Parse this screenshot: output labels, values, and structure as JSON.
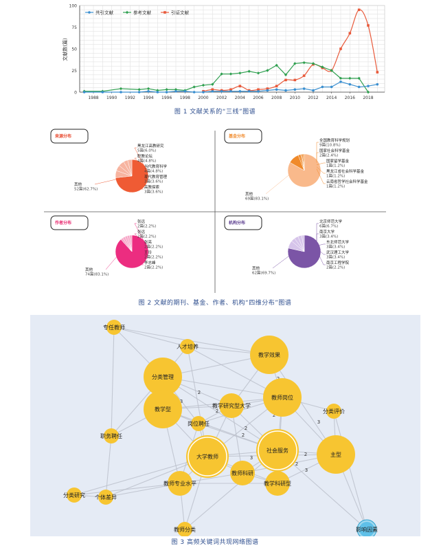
{
  "figure1": {
    "caption": "图 1 文献关系的“三线”图谱",
    "chart_data": {
      "type": "line",
      "ylabel": "文献数(篇)",
      "xlabel": "",
      "ylim": [
        0,
        100
      ],
      "yticks": [
        0,
        25,
        50,
        75,
        100
      ],
      "xticks": [
        1988,
        1990,
        1992,
        1994,
        1996,
        1998,
        2000,
        2002,
        2004,
        2006,
        2008,
        2010,
        2012,
        2014,
        2016,
        2018
      ],
      "grid": true,
      "legend": "top-left",
      "series": [
        {
          "name": "引证文献",
          "color": "#e8593a",
          "x": [
            2000,
            2001,
            2002,
            2003,
            2004,
            2005,
            2006,
            2007,
            2008,
            2009,
            2010,
            2011,
            2012,
            2013,
            2014,
            2015,
            2016,
            2017,
            2018,
            2019
          ],
          "y": [
            1,
            3,
            2,
            3,
            7,
            2,
            3,
            4,
            7,
            14,
            14,
            19,
            32,
            28,
            25,
            50,
            68,
            95,
            77,
            23
          ]
        },
        {
          "name": "参考文献",
          "color": "#2e9f4f",
          "x": [
            1987,
            1989,
            1991,
            1993,
            1994,
            1995,
            1996,
            1997,
            1998,
            1999,
            2000,
            2001,
            2002,
            2003,
            2004,
            2005,
            2006,
            2007,
            2008,
            2009,
            2010,
            2011,
            2012,
            2013,
            2014,
            2015,
            2016,
            2017,
            2018
          ],
          "y": [
            1,
            1,
            4,
            3,
            4,
            2,
            3,
            3,
            2,
            6,
            8,
            9,
            21,
            21,
            22,
            24,
            22,
            25,
            31,
            20,
            33,
            34,
            33,
            29,
            25,
            16,
            16,
            16,
            0
          ]
        },
        {
          "name": "共引文献",
          "color": "#3a8fd0",
          "x": [
            1987,
            1989,
            1991,
            1993,
            1994,
            1995,
            1996,
            1997,
            1998,
            1999,
            2000,
            2001,
            2002,
            2003,
            2004,
            2005,
            2006,
            2007,
            2008,
            2009,
            2010,
            2011,
            2012,
            2013,
            2014,
            2015,
            2016,
            2017,
            2018,
            2019
          ],
          "y": [
            0,
            0,
            0,
            0,
            1,
            0,
            0,
            1,
            1,
            0,
            0,
            1,
            1,
            1,
            1,
            1,
            1,
            2,
            3,
            2,
            3,
            4,
            2,
            6,
            6,
            12,
            9,
            6,
            7,
            9
          ]
        }
      ]
    }
  },
  "figure2": {
    "caption": "图 2 文献的期刊、基金、作者、机构“四维分布”图谱",
    "chart_data": [
      {
        "type": "pie",
        "title": "来源分布",
        "title_color": "#e84a2f",
        "slices": [
          {
            "label": "其他",
            "count": "52篇",
            "percent": 62.7
          },
          {
            "label": "黑龙江高教研究",
            "count": "5篇",
            "percent": 6.0
          },
          {
            "label": "职教论坛",
            "count": "4篇",
            "percent": 4.8
          },
          {
            "label": "当代教育科学",
            "count": "4篇",
            "percent": 4.8
          },
          {
            "label": "现代教育管理",
            "count": "3篇",
            "percent": 3.6
          },
          {
            "label": "高教探索",
            "count": "3篇",
            "percent": 3.6
          }
        ],
        "label_lines": [
          {
            "name": "黑龙江高教研究",
            "value": "5篇(6.0%)"
          },
          {
            "name": "职教论坛",
            "value": "4篇(4.8%)"
          },
          {
            "name": "当代教育科学",
            "value": "4篇(4.8%)"
          },
          {
            "name": "现代教育管理",
            "value": "3篇(3.6%)"
          },
          {
            "name": "高教探索",
            "value": "3篇(3.6%)"
          },
          {
            "name": "其他",
            "value": "52篇(62.7%)"
          }
        ],
        "color_main": "#ef5b34",
        "color_slice": "#f7b4a0"
      },
      {
        "type": "pie",
        "title": "基金分布",
        "title_color": "#f08a2b",
        "slices": [
          {
            "label": "其他",
            "count": "69篇",
            "percent": 83.1
          },
          {
            "label": "全国教育科学规划",
            "count": "9篇",
            "percent": 10.8
          },
          {
            "label": "国家社会科学基金",
            "count": "2篇",
            "percent": 2.4
          },
          {
            "label": "国家留学基金",
            "count": "1篇",
            "percent": 1.2
          },
          {
            "label": "黑龙江省社会科学基金",
            "count": "1篇",
            "percent": 1.2
          },
          {
            "label": "云南省哲学社会科学基金",
            "count": "1篇",
            "percent": 1.2
          }
        ],
        "label_lines": [
          {
            "name": "全国教育科学规划",
            "value": "9篇(10.8%)"
          },
          {
            "name": "国家社会科学基金",
            "value": "2篇(2.4%)"
          },
          {
            "name": "国家留学基金",
            "value": "1篇(1.2%)"
          },
          {
            "name": "黑龙江省社会科学基金",
            "value": "1篇(1.2%)"
          },
          {
            "name": "云南省哲学社会科学基金",
            "value": "1篇(1.2%)"
          },
          {
            "name": "其他",
            "value": "69篇(83.1%)"
          }
        ],
        "color_main": "#f9b98b",
        "color_slice": "#f08a2b"
      },
      {
        "type": "pie",
        "title": "作者分布",
        "title_color": "#e8286e",
        "slices": [
          {
            "label": "其他",
            "count": "74篇",
            "percent": 83.1
          },
          {
            "label": "张远",
            "count": "2篇",
            "percent": 2.2
          },
          {
            "label": "张远",
            "count": "2篇",
            "percent": 2.2
          },
          {
            "label": "张亮",
            "count": "2篇",
            "percent": 2.2
          },
          {
            "label": "王玲",
            "count": "2篇",
            "percent": 2.2
          },
          {
            "label": "李志峰",
            "count": "2篇",
            "percent": 2.2
          }
        ],
        "label_lines": [
          {
            "name": "张远",
            "value": "2篇(2.2%)"
          },
          {
            "name": "张远",
            "value": "2篇(2.2%)"
          },
          {
            "name": "张亮",
            "value": "2篇(2.2%)"
          },
          {
            "name": "王玲",
            "value": "2篇(2.2%)"
          },
          {
            "name": "李志峰",
            "value": "2篇(2.2%)"
          },
          {
            "name": "其他",
            "value": "74篇(83.1%)"
          }
        ],
        "color_main": "#ec2d80",
        "color_slice": "#f7a8c8"
      },
      {
        "type": "pie",
        "title": "机构分布",
        "title_color": "#5a3c8e",
        "slices": [
          {
            "label": "其他",
            "count": "62篇",
            "percent": 69.7
          },
          {
            "label": "北京师范大学",
            "count": "6篇",
            "percent": 6.7
          },
          {
            "label": "南京大学",
            "count": "3篇",
            "percent": 3.4
          },
          {
            "label": "东北师范大学",
            "count": "3篇",
            "percent": 3.4
          },
          {
            "label": "武汉理工大学",
            "count": "3篇",
            "percent": 3.4
          },
          {
            "label": "南京工程学院",
            "count": "2篇",
            "percent": 2.2
          }
        ],
        "label_lines": [
          {
            "name": "北京师范大学",
            "value": "6篇(6.7%)"
          },
          {
            "name": "南京大学",
            "value": "3篇(3.4%)"
          },
          {
            "name": "东北师范大学",
            "value": "3篇(3.4%)"
          },
          {
            "name": "武汉理工大学",
            "value": "3篇(3.4%)"
          },
          {
            "name": "南京工程学院",
            "value": "2篇(2.2%)"
          },
          {
            "name": "其他",
            "value": "62篇(69.7%)"
          }
        ],
        "color_main": "#7b55a6",
        "color_slice": "#d6c4ea"
      }
    ]
  },
  "figure3": {
    "caption": "图 3 高频关键词共现网络图谱",
    "nodes": [
      {
        "id": "zhuanren",
        "label": "专任教师",
        "size": "small"
      },
      {
        "id": "rencai",
        "label": "人才培养",
        "size": "small"
      },
      {
        "id": "jiaoxuexiaoguo",
        "label": "教学效果",
        "size": "large"
      },
      {
        "id": "fenleiguanli",
        "label": "分类管理",
        "size": "large"
      },
      {
        "id": "jiaoshigangwei",
        "label": "教师岗位",
        "size": "large"
      },
      {
        "id": "jiaoxueyanjiu",
        "label": "教学研究型大学",
        "size": "medium"
      },
      {
        "id": "jiaoxuexing",
        "label": "教学型",
        "size": "large"
      },
      {
        "id": "fenleipingjia",
        "label": "分类评价",
        "size": "small"
      },
      {
        "id": "gangwei",
        "label": "岗位聘任",
        "size": "small"
      },
      {
        "id": "zhiwu",
        "label": "职务聘任",
        "size": "small"
      },
      {
        "id": "daxuejiaoshi",
        "label": "大学教师",
        "size": "large"
      },
      {
        "id": "shehuifuwu",
        "label": "社会服务",
        "size": "large"
      },
      {
        "id": "zhuxing",
        "label": "主型",
        "size": "large"
      },
      {
        "id": "jiaoshikeyan",
        "label": "教师科研",
        "size": "medium"
      },
      {
        "id": "zhuanyeshuiping",
        "label": "教师专业水平",
        "size": "medium"
      },
      {
        "id": "jiaoxuekeyan",
        "label": "教学科研型",
        "size": "medium"
      },
      {
        "id": "fenleiyanjiu",
        "label": "分类研究",
        "size": "small"
      },
      {
        "id": "geti",
        "label": "个体差异",
        "size": "small"
      },
      {
        "id": "jiaoshifenlei",
        "label": "教师分类",
        "size": "small"
      },
      {
        "id": "yingxiang",
        "label": "影响因素",
        "size": "small"
      }
    ],
    "edge_labels": [
      "2",
      "2",
      "3",
      "2",
      "2",
      "2",
      "3",
      "2",
      "2",
      "3",
      "2",
      "2",
      "3"
    ]
  }
}
